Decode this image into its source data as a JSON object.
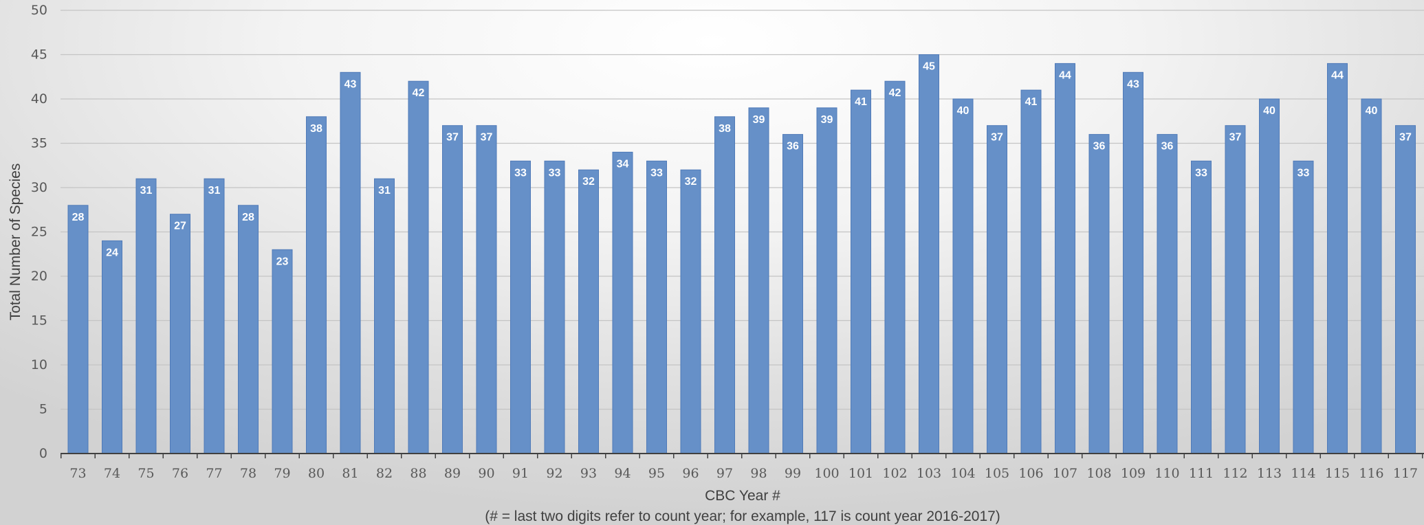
{
  "chart_data": {
    "type": "bar",
    "xlabel": "CBC Year #",
    "xlabel_note": "(# = last two digits refer to count year; for example, 117 is count year 2016-2017)",
    "ylabel": "Total Number of Species",
    "ylim": [
      0,
      50
    ],
    "yticks": [
      0,
      5,
      10,
      15,
      20,
      25,
      30,
      35,
      40,
      45,
      50
    ],
    "grid": true,
    "legend": "none",
    "bar_color": "#6690c8",
    "bar_border_color": "#4f7ab8",
    "categories": [
      "73",
      "74",
      "75",
      "76",
      "77",
      "78",
      "79",
      "80",
      "81",
      "82",
      "88",
      "89",
      "90",
      "91",
      "92",
      "93",
      "94",
      "95",
      "96",
      "97",
      "98",
      "99",
      "100",
      "101",
      "102",
      "103",
      "104",
      "105",
      "106",
      "107",
      "108",
      "109",
      "110",
      "111",
      "112",
      "113",
      "114",
      "115",
      "116",
      "117"
    ],
    "values": [
      28,
      24,
      31,
      27,
      31,
      28,
      23,
      38,
      43,
      31,
      42,
      37,
      37,
      33,
      33,
      32,
      34,
      33,
      32,
      38,
      39,
      36,
      39,
      41,
      42,
      45,
      40,
      37,
      41,
      44,
      36,
      43,
      36,
      33,
      37,
      40,
      33,
      44,
      40,
      37
    ]
  }
}
